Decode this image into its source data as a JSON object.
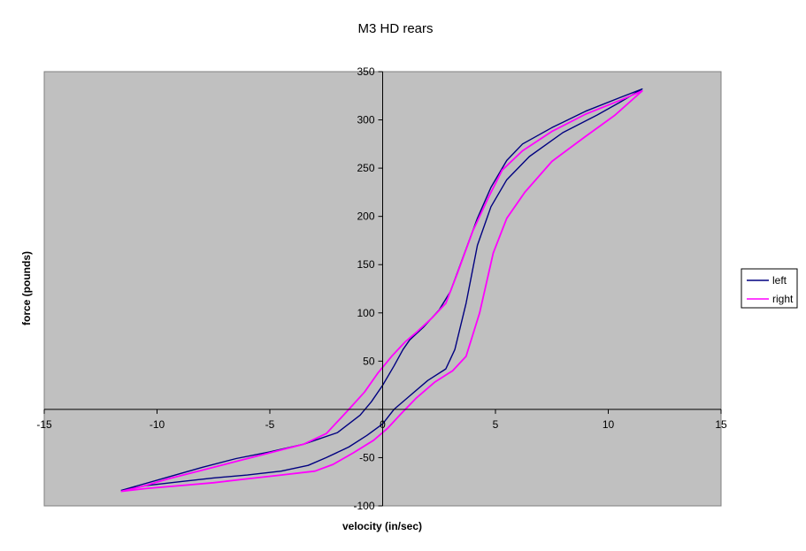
{
  "chart_data": {
    "type": "line",
    "title": "M3 HD rears",
    "xlabel": "velocity (in/sec)",
    "ylabel": "force (pounds)",
    "xlim": [
      -15,
      15
    ],
    "ylim": [
      -100,
      350
    ],
    "x_ticks": [
      -15,
      -10,
      -5,
      0,
      5,
      10,
      15
    ],
    "y_ticks": [
      -100,
      -50,
      0,
      50,
      100,
      150,
      200,
      250,
      300,
      350
    ],
    "x_tick_labels": [
      "-15",
      "-10",
      "-5",
      "0",
      "5",
      "10",
      "15"
    ],
    "y_tick_labels": [
      "-100",
      "-50",
      "",
      "50",
      "100",
      "150",
      "200",
      "250",
      "300",
      "350"
    ],
    "plot_background": "#c0c0c0",
    "grid": false,
    "legend_position": "right",
    "series": [
      {
        "name": "left",
        "color": "#000080",
        "points": [
          [
            -11.6,
            -84
          ],
          [
            -10.5,
            -79
          ],
          [
            -9.0,
            -75
          ],
          [
            -7.5,
            -71
          ],
          [
            -6.0,
            -68
          ],
          [
            -4.5,
            -64
          ],
          [
            -3.3,
            -58
          ],
          [
            -2.5,
            -50
          ],
          [
            -1.5,
            -39
          ],
          [
            -0.7,
            -27
          ],
          [
            0.0,
            -15
          ],
          [
            0.5,
            0
          ],
          [
            1.2,
            14
          ],
          [
            2.0,
            30
          ],
          [
            2.8,
            42
          ],
          [
            3.2,
            62
          ],
          [
            3.7,
            110
          ],
          [
            4.2,
            170
          ],
          [
            4.8,
            210
          ],
          [
            5.5,
            238
          ],
          [
            6.5,
            262
          ],
          [
            8.0,
            287
          ],
          [
            9.5,
            305
          ],
          [
            10.5,
            318
          ],
          [
            11.5,
            332
          ],
          [
            10.5,
            323
          ],
          [
            9.0,
            309
          ],
          [
            7.5,
            292
          ],
          [
            6.2,
            275
          ],
          [
            5.5,
            258
          ],
          [
            4.8,
            230
          ],
          [
            4.2,
            198
          ],
          [
            3.6,
            160
          ],
          [
            3.0,
            122
          ],
          [
            2.5,
            103
          ],
          [
            1.8,
            85
          ],
          [
            1.2,
            72
          ],
          [
            0.9,
            62
          ],
          [
            0.5,
            45
          ],
          [
            0.0,
            25
          ],
          [
            -0.5,
            8
          ],
          [
            -1.0,
            -6
          ],
          [
            -2.0,
            -24
          ],
          [
            -3.5,
            -36
          ],
          [
            -5.0,
            -44
          ],
          [
            -6.5,
            -51
          ],
          [
            -8.0,
            -60
          ],
          [
            -9.5,
            -70
          ],
          [
            -10.7,
            -78
          ],
          [
            -11.6,
            -84
          ]
        ]
      },
      {
        "name": "right",
        "color": "#ff00ff",
        "points": [
          [
            -11.6,
            -85
          ],
          [
            -10.5,
            -82
          ],
          [
            -9.0,
            -79
          ],
          [
            -7.5,
            -76
          ],
          [
            -6.0,
            -72
          ],
          [
            -4.5,
            -68
          ],
          [
            -3.0,
            -64
          ],
          [
            -2.2,
            -57
          ],
          [
            -1.3,
            -45
          ],
          [
            -0.4,
            -32
          ],
          [
            0.2,
            -20
          ],
          [
            0.8,
            -5
          ],
          [
            1.5,
            12
          ],
          [
            2.3,
            28
          ],
          [
            3.1,
            40
          ],
          [
            3.7,
            55
          ],
          [
            4.3,
            100
          ],
          [
            4.9,
            162
          ],
          [
            5.5,
            198
          ],
          [
            6.3,
            225
          ],
          [
            7.5,
            257
          ],
          [
            9.0,
            283
          ],
          [
            10.3,
            305
          ],
          [
            11.5,
            330
          ],
          [
            10.5,
            320
          ],
          [
            9.0,
            306
          ],
          [
            7.5,
            288
          ],
          [
            6.2,
            268
          ],
          [
            5.3,
            248
          ],
          [
            4.7,
            220
          ],
          [
            4.0,
            185
          ],
          [
            3.3,
            140
          ],
          [
            2.8,
            110
          ],
          [
            2.2,
            95
          ],
          [
            1.5,
            80
          ],
          [
            1.0,
            70
          ],
          [
            0.4,
            55
          ],
          [
            -0.2,
            38
          ],
          [
            -0.8,
            18
          ],
          [
            -1.5,
            0
          ],
          [
            -2.5,
            -25
          ],
          [
            -3.5,
            -36
          ],
          [
            -5.0,
            -45
          ],
          [
            -6.5,
            -54
          ],
          [
            -8.0,
            -63
          ],
          [
            -9.5,
            -72
          ],
          [
            -10.7,
            -80
          ],
          [
            -11.6,
            -85
          ]
        ]
      }
    ]
  }
}
